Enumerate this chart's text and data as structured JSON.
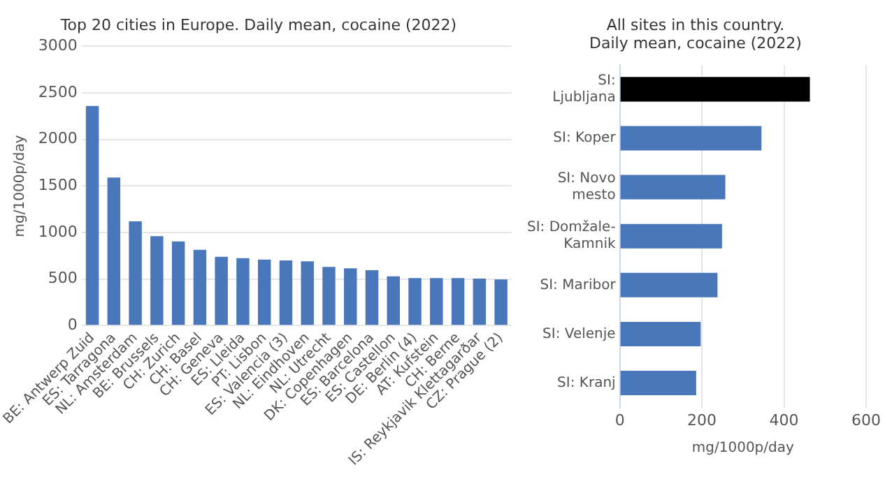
{
  "chart_data": [
    {
      "type": "bar",
      "title": "Top 20 cities in Europe. Daily mean, cocaine (2022)",
      "ylabel": "mg/1000p/day",
      "categories": [
        "BE: Antwerp Zuid",
        "ES: Tarragona",
        "NL: Amsterdam",
        "BE: Brussels",
        "CH: Zurich",
        "CH: Basel",
        "CH: Geneva",
        "ES: Lleida",
        "PT: Lisbon",
        "ES: Valencia (3)",
        "NL: Eindhoven",
        "NL: Utrecht",
        "DK: Copenhagen",
        "ES: Barcelona",
        "ES: Castellon",
        "DE: Berlin (4)",
        "AT: Kufstein",
        "CH: Berne",
        "IS: Reykjavik Klettagarðar",
        "CZ: Prague (2)"
      ],
      "values": [
        2360,
        1590,
        1120,
        960,
        905,
        815,
        740,
        725,
        710,
        700,
        690,
        630,
        615,
        595,
        530,
        510,
        510,
        510,
        505,
        495
      ],
      "color": "#4a76ba",
      "ylim": [
        0,
        3000
      ],
      "yticks": [
        0,
        500,
        1000,
        1500,
        2000,
        2500,
        3000
      ],
      "grid": "y",
      "legend": false
    },
    {
      "type": "bar",
      "orientation": "horizontal",
      "title": "All sites in this country. Daily mean, cocaine (2022)",
      "xlabel": "mg/1000p/day",
      "categories": [
        "SI: Ljubljana",
        "SI: Koper",
        "SI: Novo mesto",
        "SI: Domžale-Kamnik",
        "SI: Maribor",
        "SI: Velenje",
        "SI: Kranj"
      ],
      "values": [
        463,
        345,
        257,
        249,
        238,
        197,
        186
      ],
      "colors": [
        "#000000",
        "#4a76ba",
        "#4a76ba",
        "#4a76ba",
        "#4a76ba",
        "#4a76ba",
        "#4a76ba"
      ],
      "xlim": [
        0,
        600
      ],
      "xticks": [
        0,
        200,
        400,
        600
      ],
      "grid": "x",
      "legend": false
    }
  ]
}
